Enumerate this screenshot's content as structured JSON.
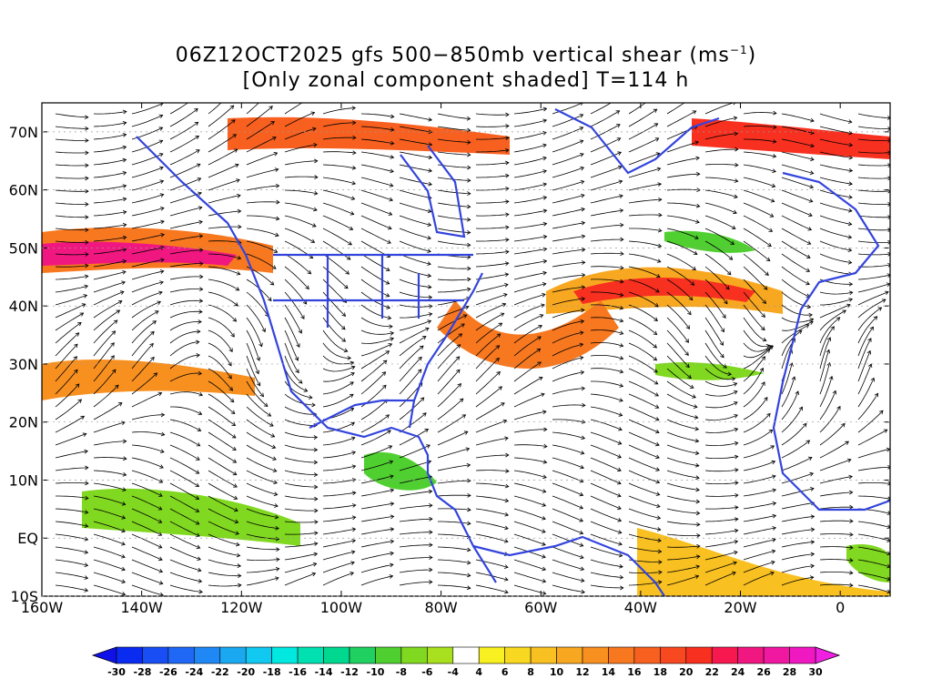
{
  "title": {
    "line1_prefix": "06Z12OCT2025 gfs 500−850mb vertical shear (ms",
    "line1_sup": "−1",
    "line1_suffix": ")",
    "line2": "[Only zonal component shaded] T=114 h"
  },
  "map": {
    "lon_range": [
      -160,
      10
    ],
    "lat_range": [
      -10,
      75
    ],
    "x_ticks": [
      {
        "lon": -160,
        "label": "160W"
      },
      {
        "lon": -140,
        "label": "140W"
      },
      {
        "lon": -120,
        "label": "120W"
      },
      {
        "lon": -100,
        "label": "100W"
      },
      {
        "lon": -80,
        "label": "80W"
      },
      {
        "lon": -60,
        "label": "60W"
      },
      {
        "lon": -40,
        "label": "40W"
      },
      {
        "lon": -20,
        "label": "20W"
      },
      {
        "lon": 0,
        "label": "0"
      }
    ],
    "y_ticks": [
      {
        "lat": 70,
        "label": "70N"
      },
      {
        "lat": 60,
        "label": "60N"
      },
      {
        "lat": 50,
        "label": "50N"
      },
      {
        "lat": 40,
        "label": "40N"
      },
      {
        "lat": 30,
        "label": "30N"
      },
      {
        "lat": 20,
        "label": "20N"
      },
      {
        "lat": 10,
        "label": "10N"
      },
      {
        "lat": 0,
        "label": "EQ"
      },
      {
        "lat": -10,
        "label": "10S"
      }
    ],
    "coast_color": "#3344dd",
    "streamline_color": "#000000"
  },
  "colorbar": {
    "labels": [
      "-30",
      "-28",
      "-26",
      "-24",
      "-22",
      "-20",
      "-18",
      "-16",
      "-14",
      "-12",
      "-10",
      "-8",
      "-6",
      "-4",
      "4",
      "6",
      "8",
      "10",
      "12",
      "14",
      "16",
      "18",
      "20",
      "22",
      "24",
      "26",
      "28",
      "30"
    ],
    "colors": [
      "#0a2bf0",
      "#1a4ef5",
      "#1f68f5",
      "#2088f5",
      "#1aa8f0",
      "#10c8f0",
      "#00e8e0",
      "#00e0b0",
      "#00d890",
      "#20d060",
      "#50d030",
      "#80d820",
      "#a8e020",
      "#ffffff",
      "#f8f020",
      "#f8d820",
      "#f8c020",
      "#f8a820",
      "#f89020",
      "#f87820",
      "#f86020",
      "#f84820",
      "#f83020",
      "#f81850",
      "#f01880",
      "#f018a0",
      "#f018c0"
    ],
    "low_arrow_color": "#1010e8",
    "high_arrow_color": "#f020e0"
  }
}
